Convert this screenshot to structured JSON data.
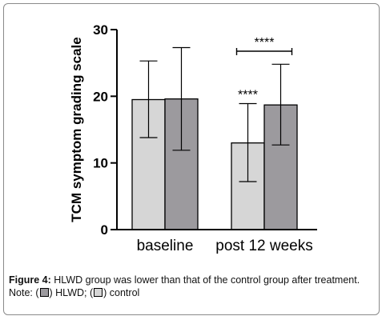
{
  "chart_data": {
    "type": "bar",
    "categories": [
      "baseline",
      "post 12 weeks"
    ],
    "ylabel": "TCM symptom grading scale",
    "ylim": [
      0,
      30
    ],
    "yticks": [
      0,
      10,
      20,
      30
    ],
    "series": [
      {
        "name": "control",
        "color": "#d6d6d6",
        "values": [
          19.5,
          13.0
        ],
        "err_low": [
          13.8,
          7.2
        ],
        "err_high": [
          25.3,
          18.9
        ]
      },
      {
        "name": "HLWD",
        "color": "#9c9a9e",
        "values": [
          19.6,
          18.7
        ],
        "err_low": [
          11.9,
          12.7
        ],
        "err_high": [
          27.3,
          24.8
        ]
      }
    ],
    "annotations": [
      {
        "text": "****",
        "type": "star",
        "category": 1,
        "series": 0
      },
      {
        "text": "****",
        "type": "bracket",
        "category": 1
      }
    ]
  },
  "caption": {
    "label": "Figure 4:",
    "text": " HLWD group was lower than that of the control group after treatment.",
    "note_prefix": "Note: (",
    "note_hlwd": ") HLWD; (",
    "note_control": ") control",
    "hlwd_color": "#9c9a9e",
    "control_color": "#d6d6d6"
  }
}
